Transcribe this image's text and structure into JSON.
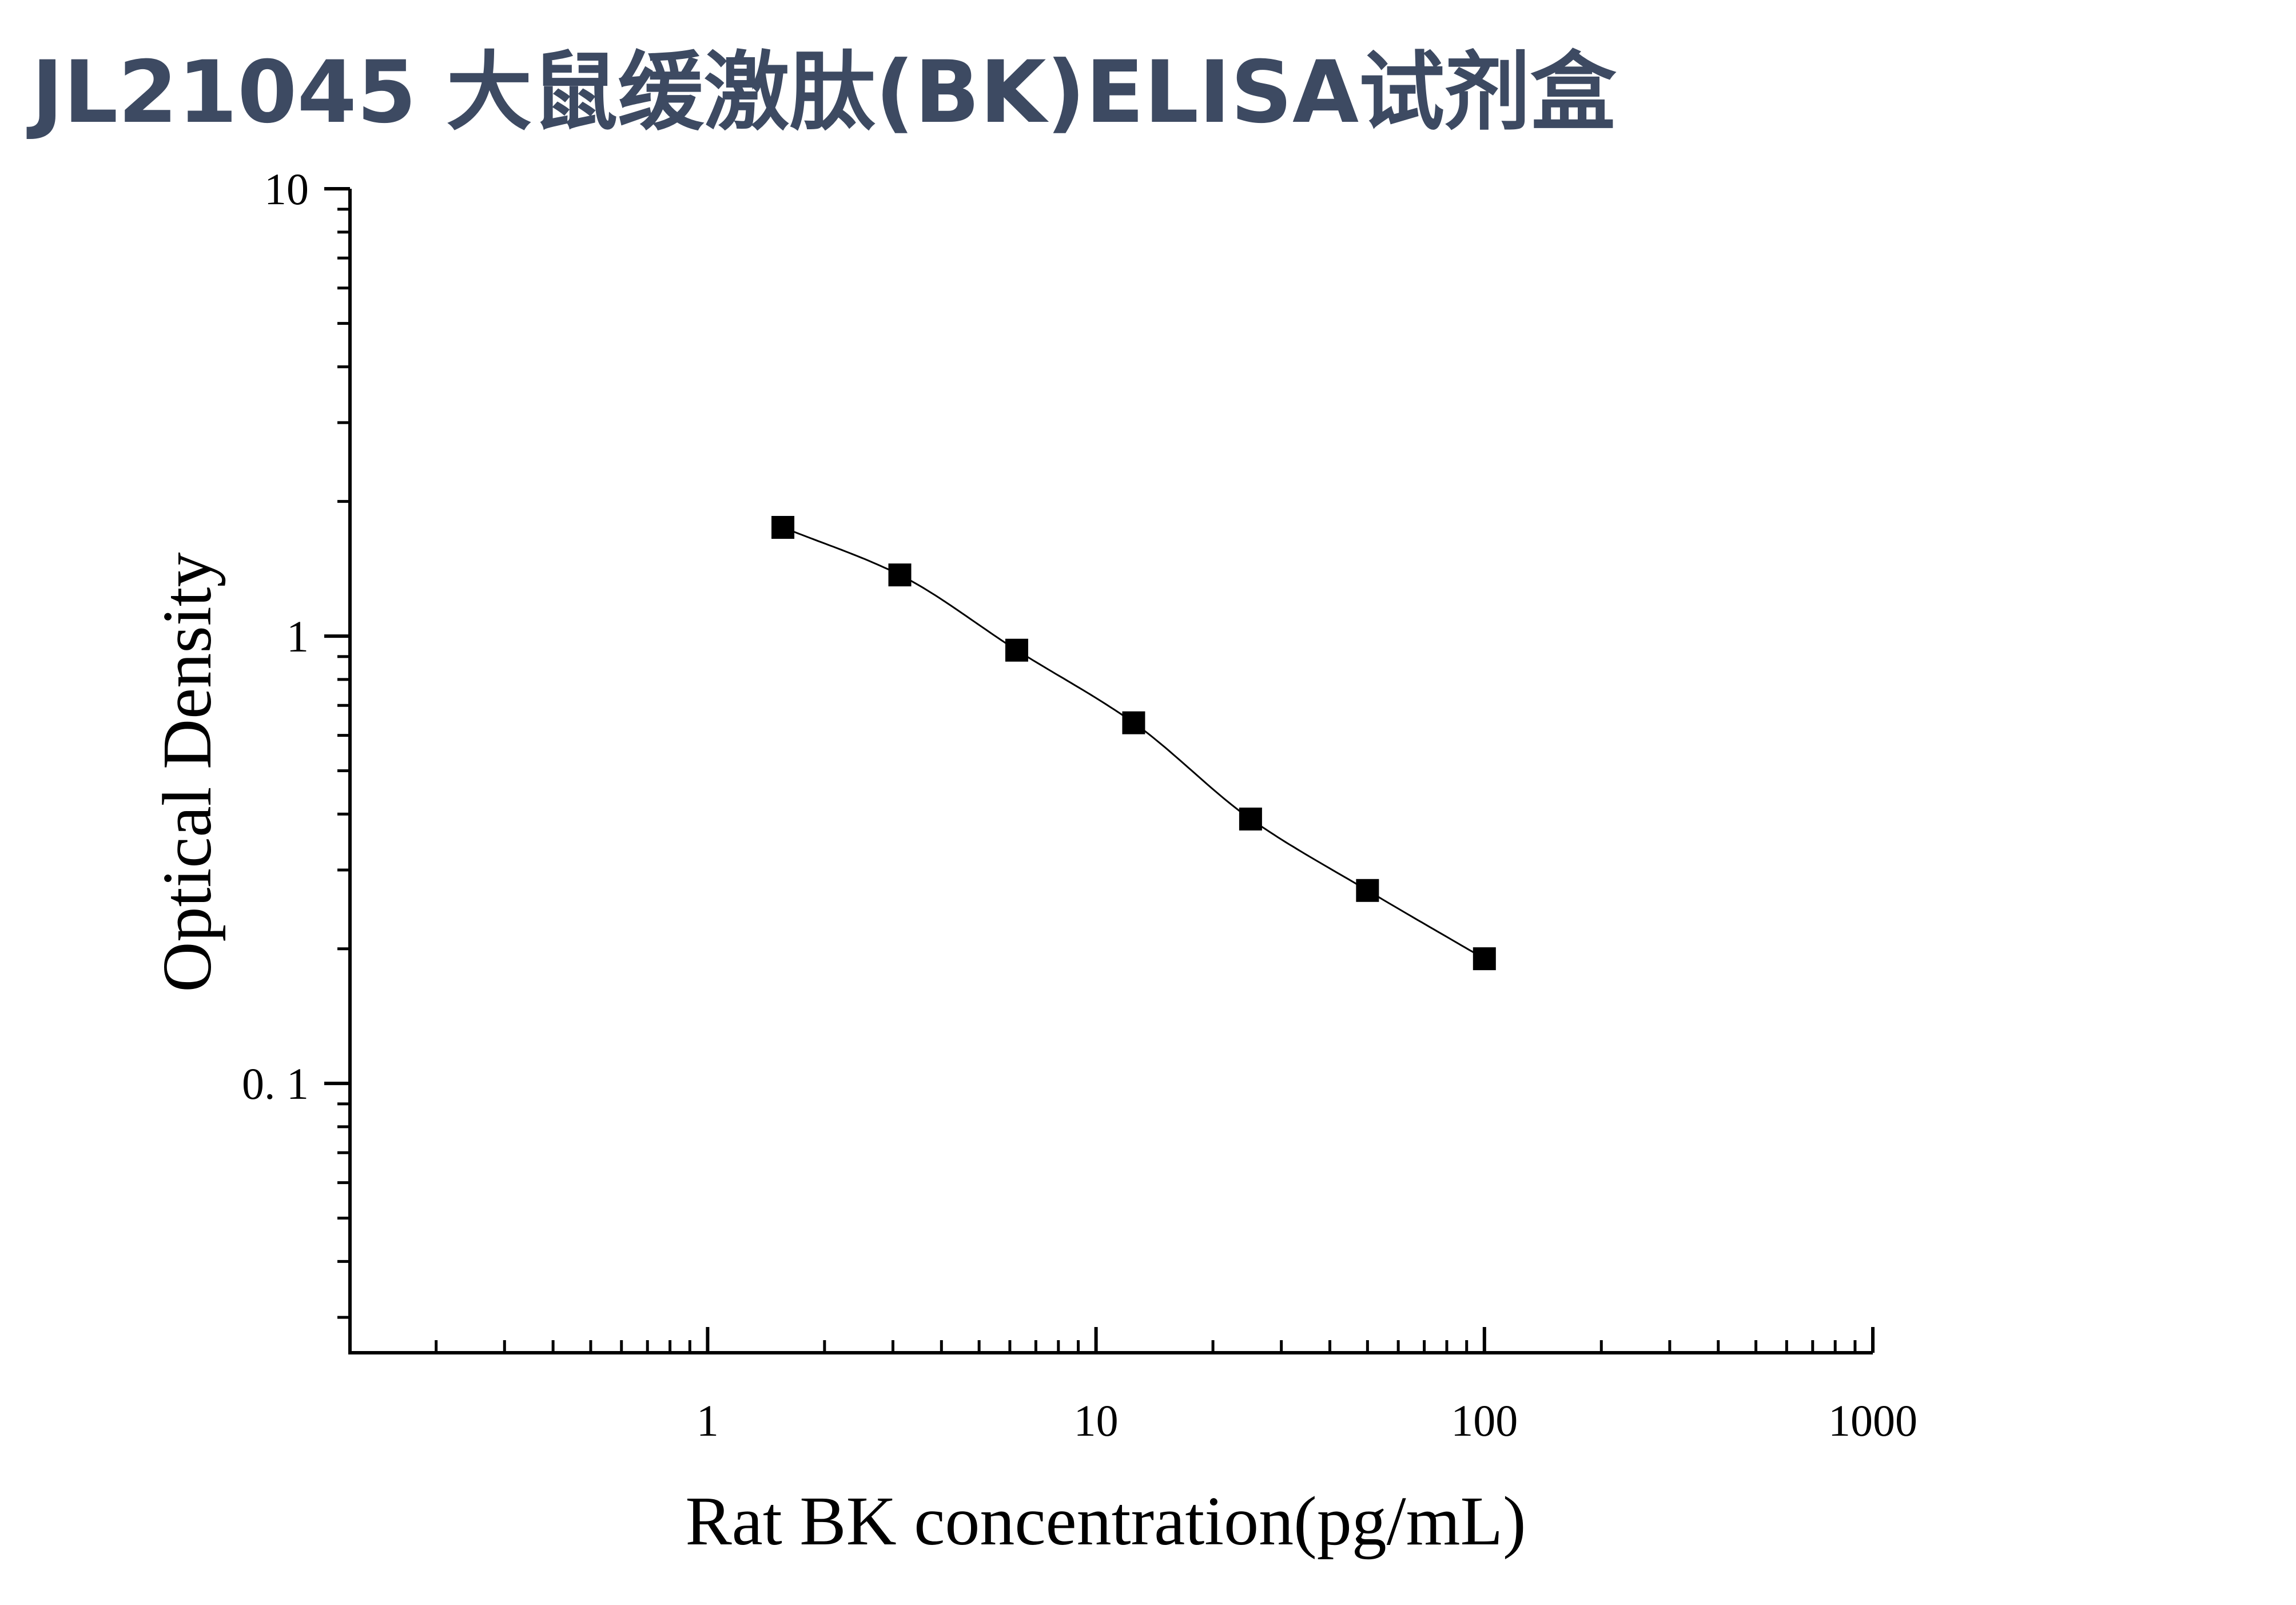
{
  "page": {
    "title": "JL21045 大鼠缓激肽(BK)ELISA试剂盒"
  },
  "chart_data": {
    "type": "scatter",
    "title": "JL21045 大鼠缓激肽(BK)ELISA试剂盒",
    "xlabel": "Rat BK concentration(pg/mL)",
    "ylabel": "Optical Density",
    "x_scale": "log",
    "y_scale": "log",
    "xlim": [
      0.12,
      1000
    ],
    "ylim": [
      0.025,
      10
    ],
    "x_ticks": [
      1,
      10,
      100,
      1000
    ],
    "x_tick_labels": [
      "1",
      "10",
      "100",
      "1000"
    ],
    "y_ticks": [
      0.1,
      1,
      10
    ],
    "y_tick_labels": [
      "0. 1",
      "1",
      "10"
    ],
    "grid": false,
    "fit_curve": true,
    "marker": "square",
    "marker_color": "#000000",
    "curve_color": "#000000",
    "series": [
      {
        "x": [
          1.5625,
          3.125,
          6.25,
          12.5,
          25,
          50,
          100
        ],
        "y": [
          1.75,
          1.37,
          0.93,
          0.64,
          0.39,
          0.27,
          0.19
        ]
      }
    ]
  }
}
